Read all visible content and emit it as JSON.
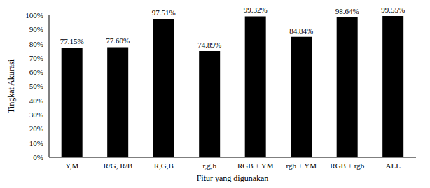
{
  "chart_data": {
    "type": "bar",
    "x_label": "Fitur yang digunakan",
    "y_label": "Tingkat Akurasi",
    "categories": [
      "Y,M",
      "R/G, R/B",
      "R,G,B",
      "r,g,b",
      "RGB + YM",
      "rgb + YM",
      "RGB + rgb",
      "ALL"
    ],
    "values": [
      77.15,
      77.6,
      97.51,
      74.89,
      99.32,
      84.84,
      98.64,
      99.55
    ],
    "value_labels": [
      "77.15%",
      "77.60%",
      "97.51%",
      "74.89%",
      "99.32%",
      "84.84%",
      "98.64%",
      "99.55%"
    ],
    "data_labels": true,
    "color": "#000000",
    "ylim": [
      0,
      100
    ],
    "yticks": [
      {
        "value": 0,
        "label": "0%"
      },
      {
        "value": 10,
        "label": "10%"
      },
      {
        "value": 20,
        "label": "20%"
      },
      {
        "value": 30,
        "label": "30%"
      },
      {
        "value": 40,
        "label": "40%"
      },
      {
        "value": 50,
        "label": "50%"
      },
      {
        "value": 60,
        "label": "60%"
      },
      {
        "value": 70,
        "label": "70%"
      },
      {
        "value": 80,
        "label": "80%"
      },
      {
        "value": 90,
        "label": "90%"
      },
      {
        "value": 100,
        "label": "100%"
      }
    ],
    "grid": false
  }
}
